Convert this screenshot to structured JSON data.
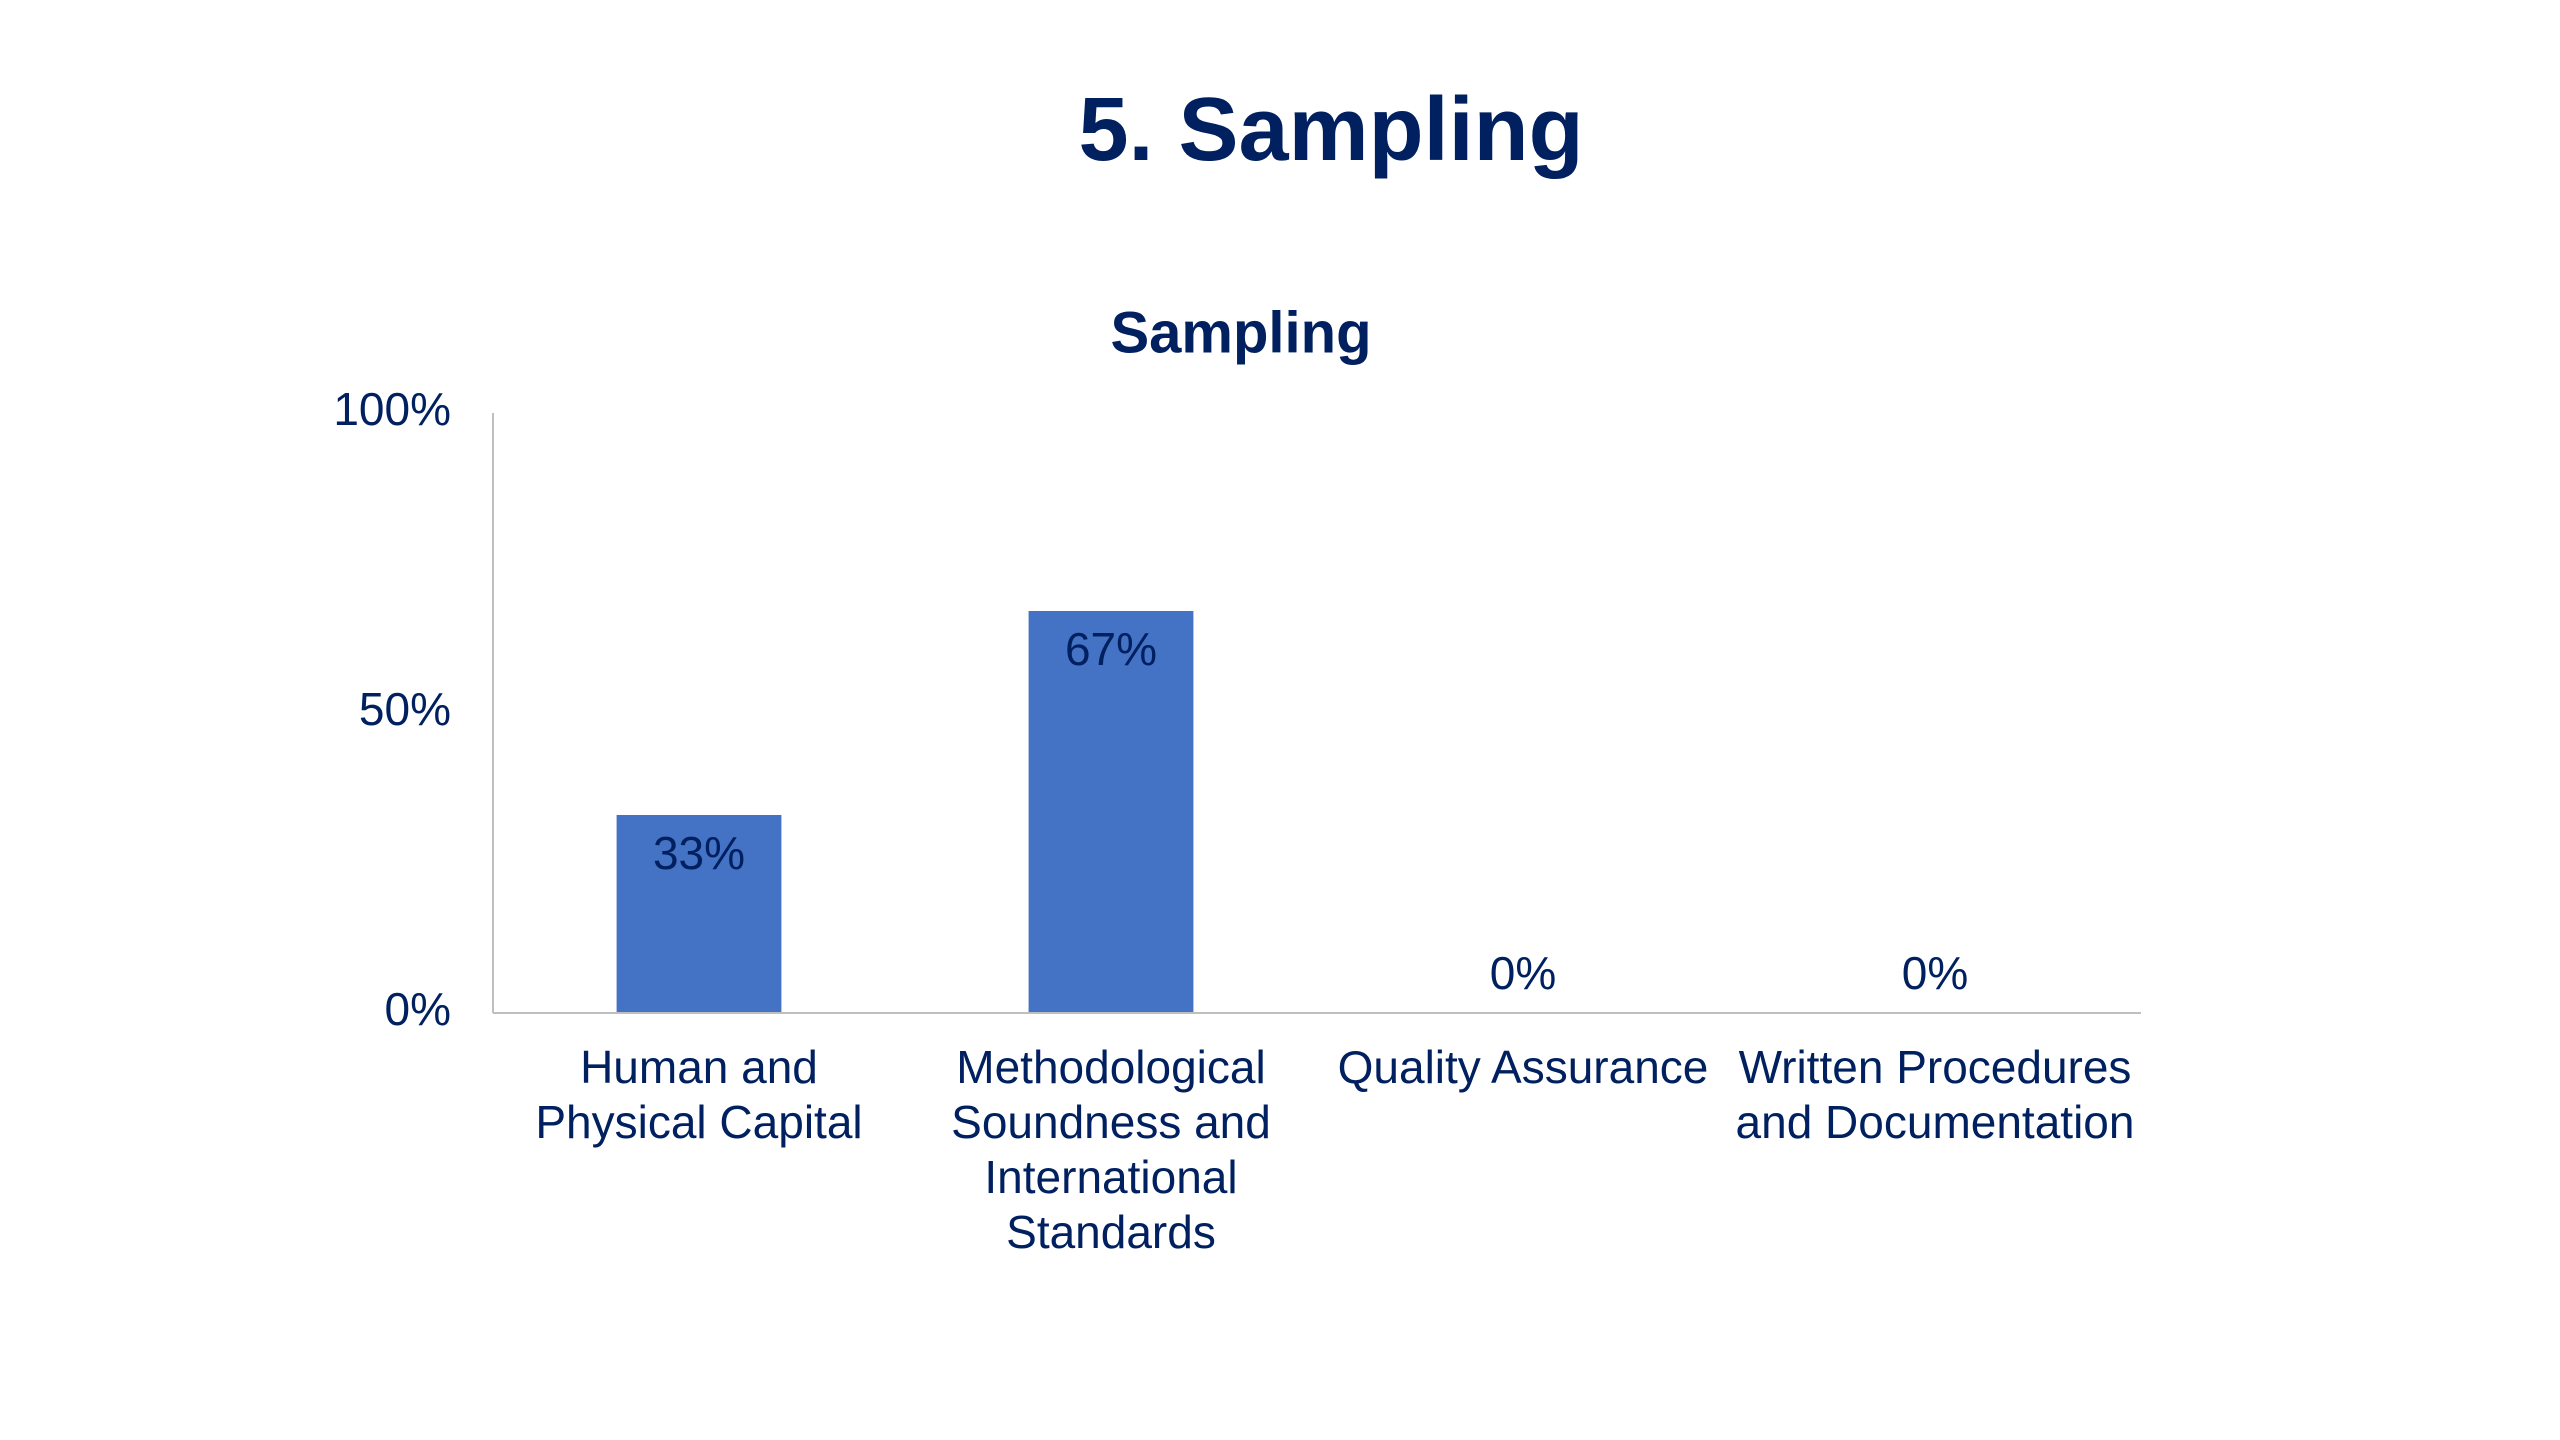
{
  "title": "5. Sampling",
  "chart_data": {
    "type": "bar",
    "title": "Sampling",
    "categories": [
      "Human and Physical Capital",
      "Methodological Soundness and International Standards",
      "Quality Assurance",
      "Written Procedures and Documentation"
    ],
    "values": [
      33,
      67,
      0,
      0
    ],
    "value_labels": [
      "33%",
      "67%",
      "0%",
      "0%"
    ],
    "color": "#4472c4",
    "ylim": [
      0,
      100
    ],
    "yticks": [
      {
        "value": 0,
        "label": "0%"
      },
      {
        "value": 50,
        "label": "50%"
      },
      {
        "value": 100,
        "label": "100%"
      }
    ],
    "grid": false
  }
}
